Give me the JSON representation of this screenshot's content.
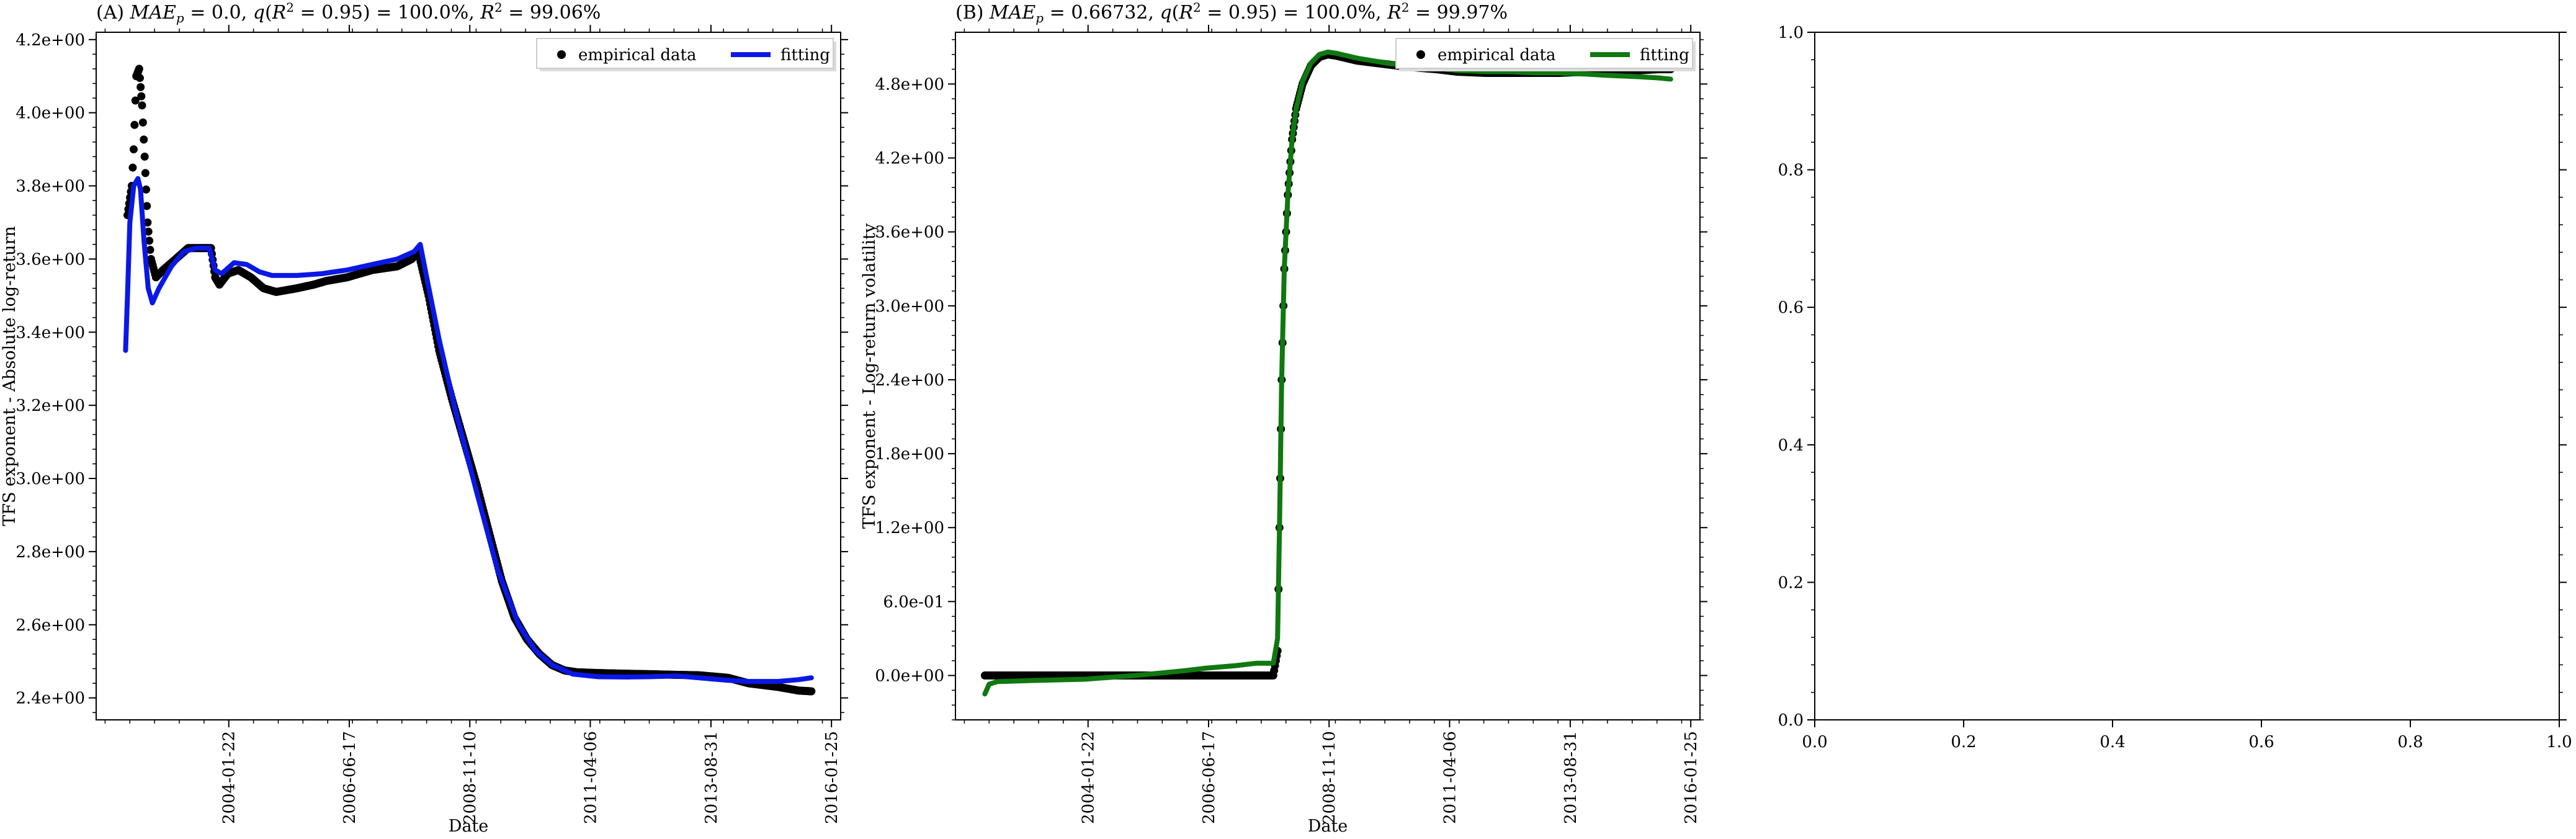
{
  "chart_data": [
    {
      "type": "line",
      "title": "(A) MAE_p = 0.0, q(R^2 = 0.95) = 100.0%, R^2 = 99.06%",
      "title_parts": {
        "prefix": "(A) ",
        "mae_sym": "MAE",
        "mae_sub": "p",
        "mae_val": " = 0.0, ",
        "q_sym": "q",
        "q_open": "(",
        "r_sym": "R",
        "sup": "2",
        "q_close": " = 0.95) = 100.0%, ",
        "r2_sym": "R",
        "r2_sup": "2",
        "r2_val": " = 99.06%"
      },
      "xlabel": "Date",
      "ylabel": "TFS exponent - Absolute log-return",
      "x_scale": "date",
      "xlim": [
        "2001-06-01",
        "2016-04-01"
      ],
      "ylim": [
        2.34,
        4.22
      ],
      "x_ticks": [
        "2004-01-22",
        "2006-06-17",
        "2008-11-10",
        "2011-04-06",
        "2013-08-31",
        "2016-01-25"
      ],
      "y_ticks": [
        2.4,
        2.6,
        2.8,
        3.0,
        3.2,
        3.4,
        3.6,
        3.8,
        4.0,
        4.2
      ],
      "y_tick_labels": [
        "2.4e+00",
        "2.6e+00",
        "2.8e+00",
        "3.0e+00",
        "3.2e+00",
        "3.4e+00",
        "3.6e+00",
        "3.8e+00",
        "4.0e+00",
        "4.2e+00"
      ],
      "legend_position": "top-right",
      "series": [
        {
          "name": "empirical data",
          "style": "markers",
          "color": "#000000",
          "points": [
            [
              "2002-01-15",
              3.72
            ],
            [
              "2002-02-15",
              3.8
            ],
            [
              "2002-03-01",
              3.9
            ],
            [
              "2002-03-20",
              4.1
            ],
            [
              "2002-04-10",
              4.12
            ],
            [
              "2002-05-01",
              4.02
            ],
            [
              "2002-05-20",
              3.88
            ],
            [
              "2002-06-10",
              3.7
            ],
            [
              "2002-07-05",
              3.6
            ],
            [
              "2002-08-10",
              3.55
            ],
            [
              "2002-10-01",
              3.57
            ],
            [
              "2003-01-01",
              3.6
            ],
            [
              "2003-04-01",
              3.63
            ],
            [
              "2003-07-01",
              3.63
            ],
            [
              "2003-09-15",
              3.63
            ],
            [
              "2003-10-15",
              3.55
            ],
            [
              "2003-11-15",
              3.53
            ],
            [
              "2004-01-15",
              3.56
            ],
            [
              "2004-04-01",
              3.57
            ],
            [
              "2004-07-01",
              3.55
            ],
            [
              "2004-10-01",
              3.52
            ],
            [
              "2005-01-01",
              3.51
            ],
            [
              "2005-06-01",
              3.52
            ],
            [
              "2005-10-01",
              3.53
            ],
            [
              "2006-01-01",
              3.54
            ],
            [
              "2006-06-01",
              3.55
            ],
            [
              "2006-12-01",
              3.57
            ],
            [
              "2007-06-01",
              3.58
            ],
            [
              "2007-09-15",
              3.6
            ],
            [
              "2007-11-01",
              3.62
            ],
            [
              "2008-01-15",
              3.5
            ],
            [
              "2008-04-01",
              3.35
            ],
            [
              "2008-07-01",
              3.22
            ],
            [
              "2008-10-01",
              3.1
            ],
            [
              "2009-01-01",
              2.98
            ],
            [
              "2009-04-01",
              2.85
            ],
            [
              "2009-07-01",
              2.72
            ],
            [
              "2009-10-01",
              2.62
            ],
            [
              "2010-01-01",
              2.56
            ],
            [
              "2010-04-01",
              2.52
            ],
            [
              "2010-07-01",
              2.49
            ],
            [
              "2010-10-01",
              2.475
            ],
            [
              "2011-01-01",
              2.47
            ],
            [
              "2011-06-01",
              2.468
            ],
            [
              "2012-01-01",
              2.466
            ],
            [
              "2012-06-01",
              2.465
            ],
            [
              "2013-01-01",
              2.463
            ],
            [
              "2013-06-01",
              2.462
            ],
            [
              "2014-01-01",
              2.455
            ],
            [
              "2014-06-01",
              2.44
            ],
            [
              "2015-01-01",
              2.43
            ],
            [
              "2015-06-01",
              2.42
            ],
            [
              "2015-09-01",
              2.418
            ]
          ]
        },
        {
          "name": "fitting",
          "style": "line",
          "color": "#0a18e6",
          "points": [
            [
              "2002-01-01",
              3.35
            ],
            [
              "2002-01-15",
              3.5
            ],
            [
              "2002-02-01",
              3.7
            ],
            [
              "2002-03-01",
              3.8
            ],
            [
              "2002-04-01",
              3.82
            ],
            [
              "2002-04-20",
              3.79
            ],
            [
              "2002-05-15",
              3.65
            ],
            [
              "2002-06-15",
              3.52
            ],
            [
              "2002-07-15",
              3.48
            ],
            [
              "2002-09-01",
              3.52
            ],
            [
              "2002-12-01",
              3.58
            ],
            [
              "2003-03-01",
              3.62
            ],
            [
              "2003-06-01",
              3.63
            ],
            [
              "2003-09-01",
              3.63
            ],
            [
              "2003-10-15",
              3.57
            ],
            [
              "2003-12-01",
              3.56
            ],
            [
              "2004-03-01",
              3.59
            ],
            [
              "2004-06-01",
              3.585
            ],
            [
              "2004-09-01",
              3.565
            ],
            [
              "2004-12-01",
              3.555
            ],
            [
              "2005-06-01",
              3.555
            ],
            [
              "2005-12-01",
              3.56
            ],
            [
              "2006-06-01",
              3.57
            ],
            [
              "2006-12-01",
              3.585
            ],
            [
              "2007-06-01",
              3.6
            ],
            [
              "2007-10-01",
              3.62
            ],
            [
              "2007-11-15",
              3.64
            ],
            [
              "2008-01-01",
              3.55
            ],
            [
              "2008-04-01",
              3.38
            ],
            [
              "2008-08-01",
              3.18
            ],
            [
              "2009-01-01",
              2.96
            ],
            [
              "2009-06-01",
              2.75
            ],
            [
              "2009-11-01",
              2.6
            ],
            [
              "2010-03-01",
              2.53
            ],
            [
              "2010-07-01",
              2.49
            ],
            [
              "2010-12-01",
              2.465
            ],
            [
              "2011-06-01",
              2.458
            ],
            [
              "2012-01-01",
              2.457
            ],
            [
              "2012-06-01",
              2.458
            ],
            [
              "2013-01-01",
              2.46
            ],
            [
              "2013-06-01",
              2.455
            ],
            [
              "2014-01-01",
              2.448
            ],
            [
              "2014-06-01",
              2.445
            ],
            [
              "2015-01-01",
              2.445
            ],
            [
              "2015-06-01",
              2.45
            ],
            [
              "2015-09-01",
              2.455
            ]
          ]
        }
      ]
    },
    {
      "type": "line",
      "title": "(B) MAE_p = 0.66732, q(R^2 = 0.95) = 100.0%, R^2 = 99.97%",
      "title_parts": {
        "prefix": "(B) ",
        "mae_sym": "MAE",
        "mae_sub": "p",
        "mae_val": " = 0.66732, ",
        "q_sym": "q",
        "q_open": "(",
        "r_sym": "R",
        "sup": "2",
        "q_close": " = 0.95) = 100.0%, ",
        "r2_sym": "R",
        "r2_sup": "2",
        "r2_val": " = 99.97%"
      },
      "xlabel": "Date",
      "ylabel": "TFS exponent - Log-return volatility",
      "x_scale": "date",
      "xlim": [
        "2001-06-01",
        "2016-04-01"
      ],
      "ylim": [
        -0.36,
        5.22
      ],
      "x_ticks": [
        "2004-01-22",
        "2006-06-17",
        "2008-11-10",
        "2011-04-06",
        "2013-08-31",
        "2016-01-25"
      ],
      "y_ticks": [
        0.0,
        0.6,
        1.2,
        1.8,
        2.4,
        3.0,
        3.6,
        4.2,
        4.8
      ],
      "y_tick_labels": [
        "0.0e+00",
        "6.0e-01",
        "1.2e+00",
        "1.8e+00",
        "2.4e+00",
        "3.0e+00",
        "3.6e+00",
        "4.2e+00",
        "4.8e+00"
      ],
      "legend_position": "top-right",
      "series": [
        {
          "name": "empirical data",
          "style": "markers",
          "color": "#000000",
          "points": [
            [
              "2002-01-01",
              0.0
            ],
            [
              "2002-06-01",
              0.0
            ],
            [
              "2003-01-01",
              0.0
            ],
            [
              "2003-06-01",
              0.0
            ],
            [
              "2004-01-01",
              0.0
            ],
            [
              "2004-06-01",
              0.0
            ],
            [
              "2005-01-01",
              0.0
            ],
            [
              "2005-06-01",
              0.0
            ],
            [
              "2006-01-01",
              0.0
            ],
            [
              "2006-06-01",
              0.0
            ],
            [
              "2007-01-01",
              0.0
            ],
            [
              "2007-06-01",
              0.0
            ],
            [
              "2007-10-01",
              0.0
            ],
            [
              "2007-11-01",
              0.2
            ],
            [
              "2007-11-15",
              1.2
            ],
            [
              "2007-12-01",
              2.4
            ],
            [
              "2007-12-20",
              3.3
            ],
            [
              "2008-01-15",
              3.9
            ],
            [
              "2008-02-15",
              4.35
            ],
            [
              "2008-03-15",
              4.6
            ],
            [
              "2008-05-01",
              4.8
            ],
            [
              "2008-07-01",
              4.95
            ],
            [
              "2008-09-01",
              5.02
            ],
            [
              "2008-11-01",
              5.04
            ],
            [
              "2009-01-01",
              5.03
            ],
            [
              "2009-06-01",
              4.99
            ],
            [
              "2010-01-01",
              4.96
            ],
            [
              "2010-06-01",
              4.94
            ],
            [
              "2011-01-01",
              4.92
            ],
            [
              "2011-06-01",
              4.9
            ],
            [
              "2012-01-01",
              4.89
            ],
            [
              "2012-06-01",
              4.89
            ],
            [
              "2013-01-01",
              4.89
            ],
            [
              "2013-06-01",
              4.89
            ],
            [
              "2014-01-01",
              4.9
            ],
            [
              "2014-06-01",
              4.9
            ],
            [
              "2015-01-01",
              4.91
            ],
            [
              "2015-06-01",
              4.92
            ],
            [
              "2015-09-01",
              4.92
            ]
          ]
        },
        {
          "name": "fitting",
          "style": "line",
          "color": "#107810",
          "points": [
            [
              "2002-01-01",
              -0.15
            ],
            [
              "2002-02-01",
              -0.07
            ],
            [
              "2002-04-01",
              -0.05
            ],
            [
              "2003-01-01",
              -0.04
            ],
            [
              "2004-01-01",
              -0.03
            ],
            [
              "2005-01-01",
              0.0
            ],
            [
              "2006-01-01",
              0.04
            ],
            [
              "2006-06-01",
              0.06
            ],
            [
              "2007-01-01",
              0.08
            ],
            [
              "2007-06-01",
              0.1
            ],
            [
              "2007-10-01",
              0.1
            ],
            [
              "2007-11-01",
              0.3
            ],
            [
              "2007-11-15",
              1.2
            ],
            [
              "2007-12-01",
              2.4
            ],
            [
              "2007-12-20",
              3.3
            ],
            [
              "2008-01-15",
              3.9
            ],
            [
              "2008-02-15",
              4.35
            ],
            [
              "2008-03-15",
              4.6
            ],
            [
              "2008-05-01",
              4.82
            ],
            [
              "2008-07-01",
              4.97
            ],
            [
              "2008-09-01",
              5.04
            ],
            [
              "2008-11-01",
              5.06
            ],
            [
              "2009-01-01",
              5.05
            ],
            [
              "2009-06-01",
              5.01
            ],
            [
              "2010-01-01",
              4.97
            ],
            [
              "2010-06-01",
              4.95
            ],
            [
              "2011-01-01",
              4.93
            ],
            [
              "2011-06-01",
              4.91
            ],
            [
              "2012-01-01",
              4.9
            ],
            [
              "2012-06-01",
              4.9
            ],
            [
              "2013-01-01",
              4.89
            ],
            [
              "2013-06-01",
              4.89
            ],
            [
              "2014-01-01",
              4.88
            ],
            [
              "2014-06-01",
              4.87
            ],
            [
              "2015-01-01",
              4.86
            ],
            [
              "2015-06-01",
              4.85
            ],
            [
              "2015-09-01",
              4.84
            ]
          ]
        }
      ]
    },
    {
      "type": "line",
      "title": "",
      "xlabel": "",
      "ylabel": "",
      "xlim": [
        0.0,
        1.0
      ],
      "ylim": [
        0.0,
        1.0
      ],
      "x_ticks": [
        0.0,
        0.2,
        0.4,
        0.6,
        0.8,
        1.0
      ],
      "x_tick_labels": [
        "0.0",
        "0.2",
        "0.4",
        "0.6",
        "0.8",
        "1.0"
      ],
      "y_ticks": [
        0.0,
        0.2,
        0.4,
        0.6,
        0.8,
        1.0
      ],
      "y_tick_labels": [
        "0.0",
        "0.2",
        "0.4",
        "0.6",
        "0.8",
        "1.0"
      ],
      "series": []
    }
  ]
}
